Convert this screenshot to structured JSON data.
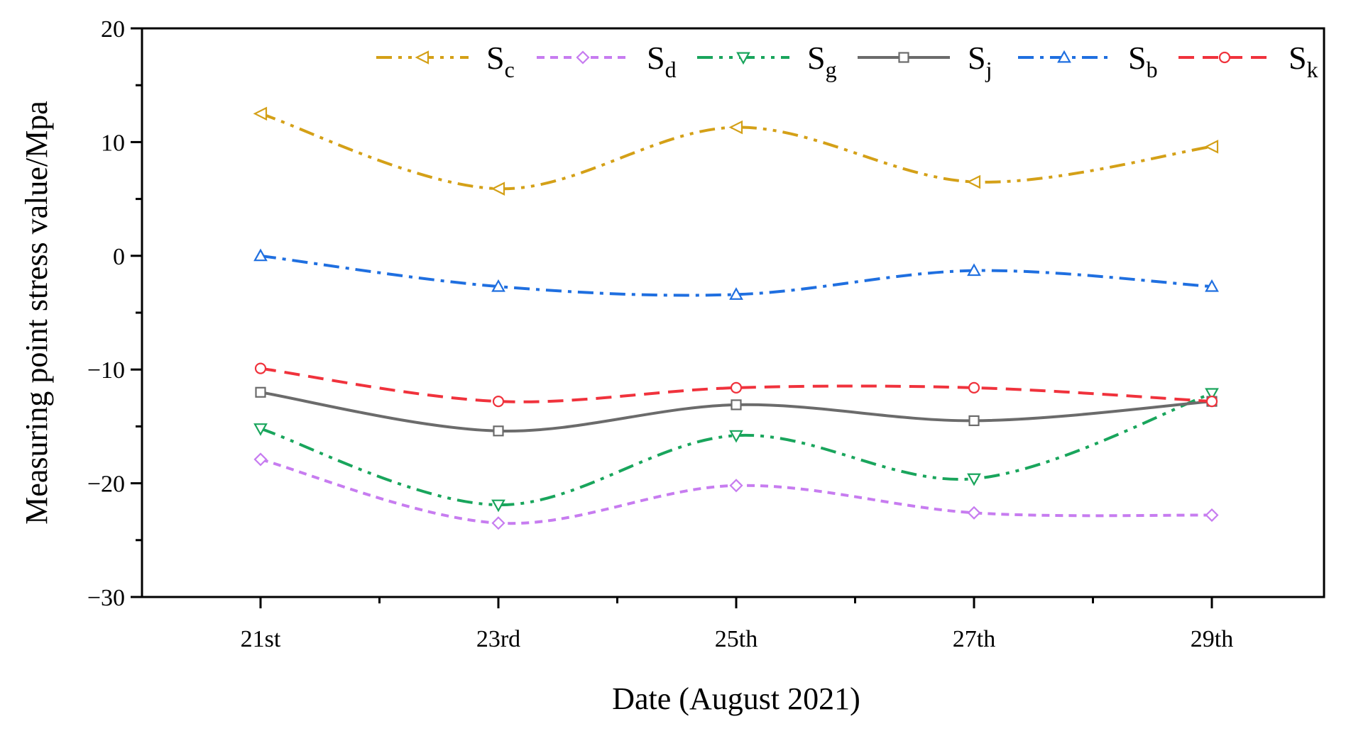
{
  "chart_data": {
    "type": "line",
    "xlabel": "Date (August 2021)",
    "ylabel": "Measuring point stress value/Mpa",
    "categories": [
      "21st",
      "23rd",
      "25th",
      "27th",
      "29th"
    ],
    "ylim": [
      -30,
      20
    ],
    "yticks": [
      -30,
      -20,
      -10,
      0,
      10,
      20
    ],
    "ytick_labels": [
      "−30",
      "−20",
      "−10",
      "0",
      "10",
      "20"
    ],
    "legend_position": "top",
    "series": [
      {
        "id": "sc",
        "base": "S",
        "sub": "c",
        "color": "#D4A017",
        "dash": "22,9,5,9,5,9",
        "marker": "triangle-left",
        "values": [
          12.5,
          5.9,
          11.3,
          6.5,
          9.6
        ]
      },
      {
        "id": "sd",
        "base": "S",
        "sub": "d",
        "color": "#C77CF0",
        "dash": "11,8",
        "marker": "diamond",
        "values": [
          -17.9,
          -23.5,
          -20.2,
          -22.6,
          -22.8
        ]
      },
      {
        "id": "sg",
        "base": "S",
        "sub": "g",
        "color": "#19A55C",
        "dash": "22,9,5,9,5,9",
        "marker": "triangle-down",
        "values": [
          -15.2,
          -21.9,
          -15.8,
          -19.6,
          -12.1
        ]
      },
      {
        "id": "sj",
        "base": "S",
        "sub": "j",
        "color": "#6B6B6B",
        "dash": "",
        "marker": "square",
        "values": [
          -12.0,
          -15.4,
          -13.1,
          -14.5,
          -12.8
        ]
      },
      {
        "id": "sb",
        "base": "S",
        "sub": "b",
        "color": "#1F6FE0",
        "dash": "22,9,5,9",
        "marker": "triangle-up",
        "values": [
          0.0,
          -2.7,
          -3.4,
          -1.3,
          -2.7
        ]
      },
      {
        "id": "sk",
        "base": "S",
        "sub": "k",
        "color": "#F0323C",
        "dash": "22,12",
        "marker": "circle",
        "values": [
          -9.9,
          -12.8,
          -11.6,
          -11.6,
          -12.8
        ]
      }
    ]
  }
}
